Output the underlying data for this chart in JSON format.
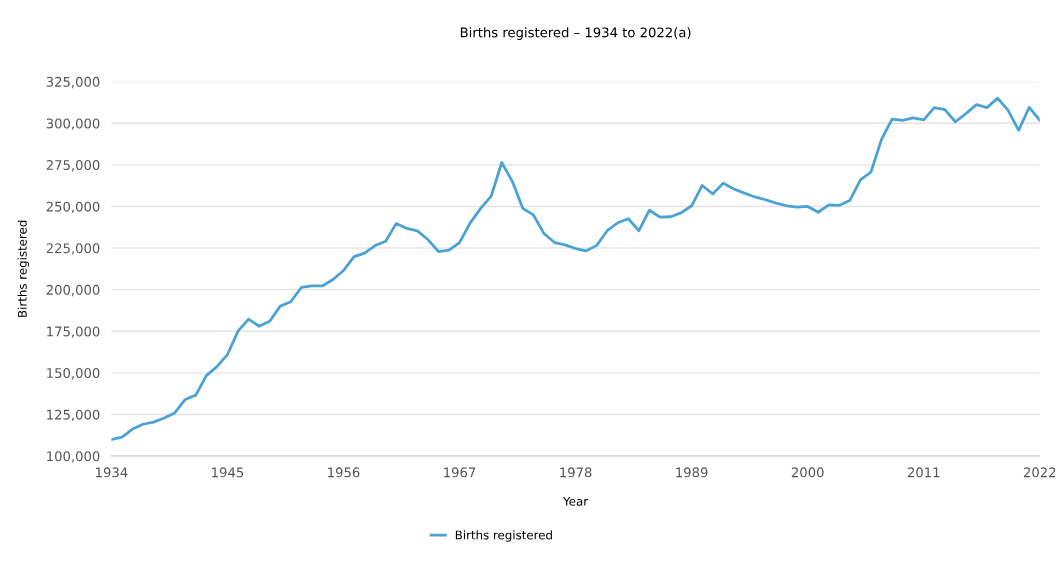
{
  "chart_data": {
    "type": "line",
    "title": "Births registered – 1934 to 2022(a)",
    "xlabel": "Year",
    "ylabel": "Births registered",
    "x": [
      1934,
      1935,
      1936,
      1937,
      1938,
      1939,
      1940,
      1941,
      1942,
      1943,
      1944,
      1945,
      1946,
      1947,
      1948,
      1949,
      1950,
      1951,
      1952,
      1953,
      1954,
      1955,
      1956,
      1957,
      1958,
      1959,
      1960,
      1961,
      1962,
      1963,
      1964,
      1965,
      1966,
      1967,
      1968,
      1969,
      1970,
      1971,
      1972,
      1973,
      1974,
      1975,
      1976,
      1977,
      1978,
      1979,
      1980,
      1981,
      1982,
      1983,
      1984,
      1985,
      1986,
      1987,
      1988,
      1989,
      1990,
      1991,
      1992,
      1993,
      1994,
      1995,
      1996,
      1997,
      1998,
      1999,
      2000,
      2001,
      2002,
      2003,
      2004,
      2005,
      2006,
      2007,
      2008,
      2009,
      2010,
      2011,
      2012,
      2013,
      2014,
      2015,
      2016,
      2017,
      2018,
      2019,
      2020,
      2021,
      2022
    ],
    "series": [
      {
        "name": "Births registered",
        "color": "#4aa3d4",
        "values": [
          109900,
          111300,
          116200,
          119100,
          120400,
          122900,
          125900,
          134000,
          136600,
          148300,
          153700,
          160900,
          175100,
          182300,
          178000,
          181000,
          190100,
          192700,
          201300,
          202200,
          202200,
          206100,
          211500,
          219800,
          221900,
          226500,
          229100,
          239800,
          236800,
          235300,
          230100,
          222900,
          223700,
          228300,
          240000,
          248800,
          256200,
          276400,
          265100,
          248800,
          244900,
          233700,
          228300,
          226900,
          224700,
          223300,
          226600,
          235400,
          240200,
          242600,
          235400,
          247700,
          243600,
          243800,
          246100,
          250400,
          262600,
          257500,
          264000,
          260500,
          258000,
          255700,
          254000,
          252000,
          250400,
          249600,
          250000,
          246500,
          251000,
          250700,
          253600,
          265900,
          270700,
          290300,
          302500,
          301700,
          303200,
          302000,
          309400,
          308200,
          300900,
          305800,
          311200,
          309400,
          315100,
          307700,
          295700,
          309600,
          301800
        ]
      }
    ],
    "xlim": [
      1934,
      2022
    ],
    "xticks": [
      1934,
      1945,
      1956,
      1967,
      1978,
      1989,
      2000,
      2011,
      2022
    ],
    "ylim": [
      100000,
      325000
    ],
    "yticks": [
      {
        "value": 100000,
        "label": "100,000"
      },
      {
        "value": 125000,
        "label": "125,000"
      },
      {
        "value": 150000,
        "label": "150,000"
      },
      {
        "value": 175000,
        "label": "175,000"
      },
      {
        "value": 200000,
        "label": "200,000"
      },
      {
        "value": 225000,
        "label": "225,000"
      },
      {
        "value": 250000,
        "label": "250,000"
      },
      {
        "value": 275000,
        "label": "275,000"
      },
      {
        "value": 300000,
        "label": "300,000"
      },
      {
        "value": 325000,
        "label": "325,000"
      }
    ],
    "grid": "y",
    "legend": "bottom",
    "marker": "none",
    "line_style": "solid"
  }
}
